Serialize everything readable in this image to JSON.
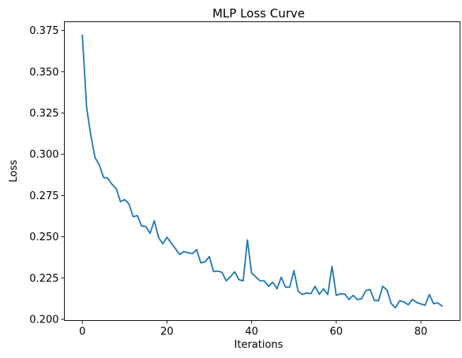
{
  "chart_data": {
    "type": "line",
    "title": "MLP Loss Curve",
    "xlabel": "Iterations",
    "ylabel": "Loss",
    "xlim": [
      -4.25,
      89.25
    ],
    "ylim": [
      0.1993,
      0.3803
    ],
    "xticks": [
      0,
      20,
      40,
      60,
      80
    ],
    "yticks": [
      0.2,
      0.225,
      0.25,
      0.275,
      0.3,
      0.325,
      0.35,
      0.375
    ],
    "ytick_labels": [
      "0.200",
      "0.225",
      "0.250",
      "0.275",
      "0.300",
      "0.325",
      "0.350",
      "0.375"
    ],
    "grid": false,
    "line_color": "#1f77b4",
    "series": [
      {
        "x": [
          0,
          1,
          2,
          3,
          4,
          5,
          6,
          7,
          8,
          9,
          10,
          11,
          12,
          13,
          14,
          15,
          16,
          17,
          18,
          19,
          20,
          21,
          22,
          23,
          24,
          25,
          26,
          27,
          28,
          29,
          30,
          31,
          32,
          33,
          34,
          35,
          36,
          37,
          38,
          39,
          40,
          41,
          42,
          43,
          44,
          45,
          46,
          47,
          48,
          49,
          50,
          51,
          52,
          53,
          54,
          55,
          56,
          57,
          58,
          59,
          60,
          61,
          62,
          63,
          64,
          65,
          66,
          67,
          68,
          69,
          70,
          71,
          72,
          73,
          74,
          75,
          76,
          77,
          78,
          79,
          80,
          81,
          82,
          83,
          84,
          85
        ],
        "values": [
          0.3722,
          0.3285,
          0.3115,
          0.298,
          0.2935,
          0.286,
          0.2855,
          0.2818,
          0.2792,
          0.2713,
          0.2725,
          0.27,
          0.2622,
          0.2628,
          0.2565,
          0.2562,
          0.2521,
          0.2597,
          0.2496,
          0.2458,
          0.2497,
          0.2462,
          0.2428,
          0.2393,
          0.241,
          0.2403,
          0.2398,
          0.2422,
          0.2342,
          0.2348,
          0.238,
          0.229,
          0.2292,
          0.2285,
          0.2233,
          0.2258,
          0.2288,
          0.224,
          0.2233,
          0.2481,
          0.228,
          0.2257,
          0.2233,
          0.2233,
          0.22,
          0.2225,
          0.2185,
          0.2255,
          0.2195,
          0.2195,
          0.2295,
          0.217,
          0.215,
          0.216,
          0.2155,
          0.22,
          0.2152,
          0.2185,
          0.215,
          0.2321,
          0.2145,
          0.2155,
          0.2153,
          0.212,
          0.2145,
          0.212,
          0.2125,
          0.2175,
          0.218,
          0.2115,
          0.2113,
          0.22,
          0.2177,
          0.2095,
          0.207,
          0.2113,
          0.2105,
          0.2088,
          0.212,
          0.2102,
          0.2093,
          0.2085,
          0.215,
          0.2095,
          0.21,
          0.208
        ]
      }
    ]
  }
}
